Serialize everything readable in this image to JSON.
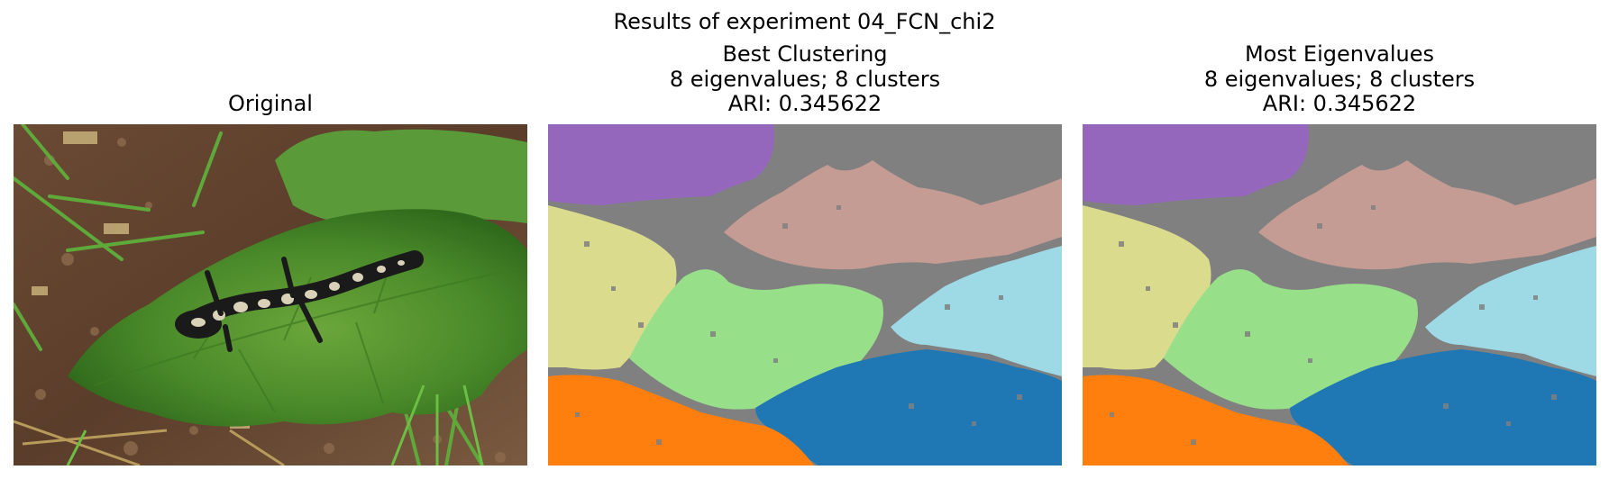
{
  "figure": {
    "suptitle": "Results of experiment 04_FCN_chi2"
  },
  "panels": [
    {
      "title_lines": [
        "Original"
      ],
      "kind": "photo",
      "subject": "spotted salamander on a green leaf over soil and grass"
    },
    {
      "title_lines": [
        "Best Clustering",
        "8 eigenvalues; 8 clusters",
        "ARI: 0.345622"
      ],
      "kind": "segmentation"
    },
    {
      "title_lines": [
        "Most Eigenvalues",
        "8 eigenvalues; 8 clusters",
        "ARI: 0.345622"
      ],
      "kind": "segmentation"
    }
  ],
  "cluster_colors": {
    "background": "#808080",
    "purple": "#9467bd",
    "khaki": "#dbdb8d",
    "rose": "#c49c94",
    "light_green": "#98df8a",
    "light_blue": "#9edae5",
    "blue": "#1f77b4",
    "orange": "#ff7f0e"
  }
}
